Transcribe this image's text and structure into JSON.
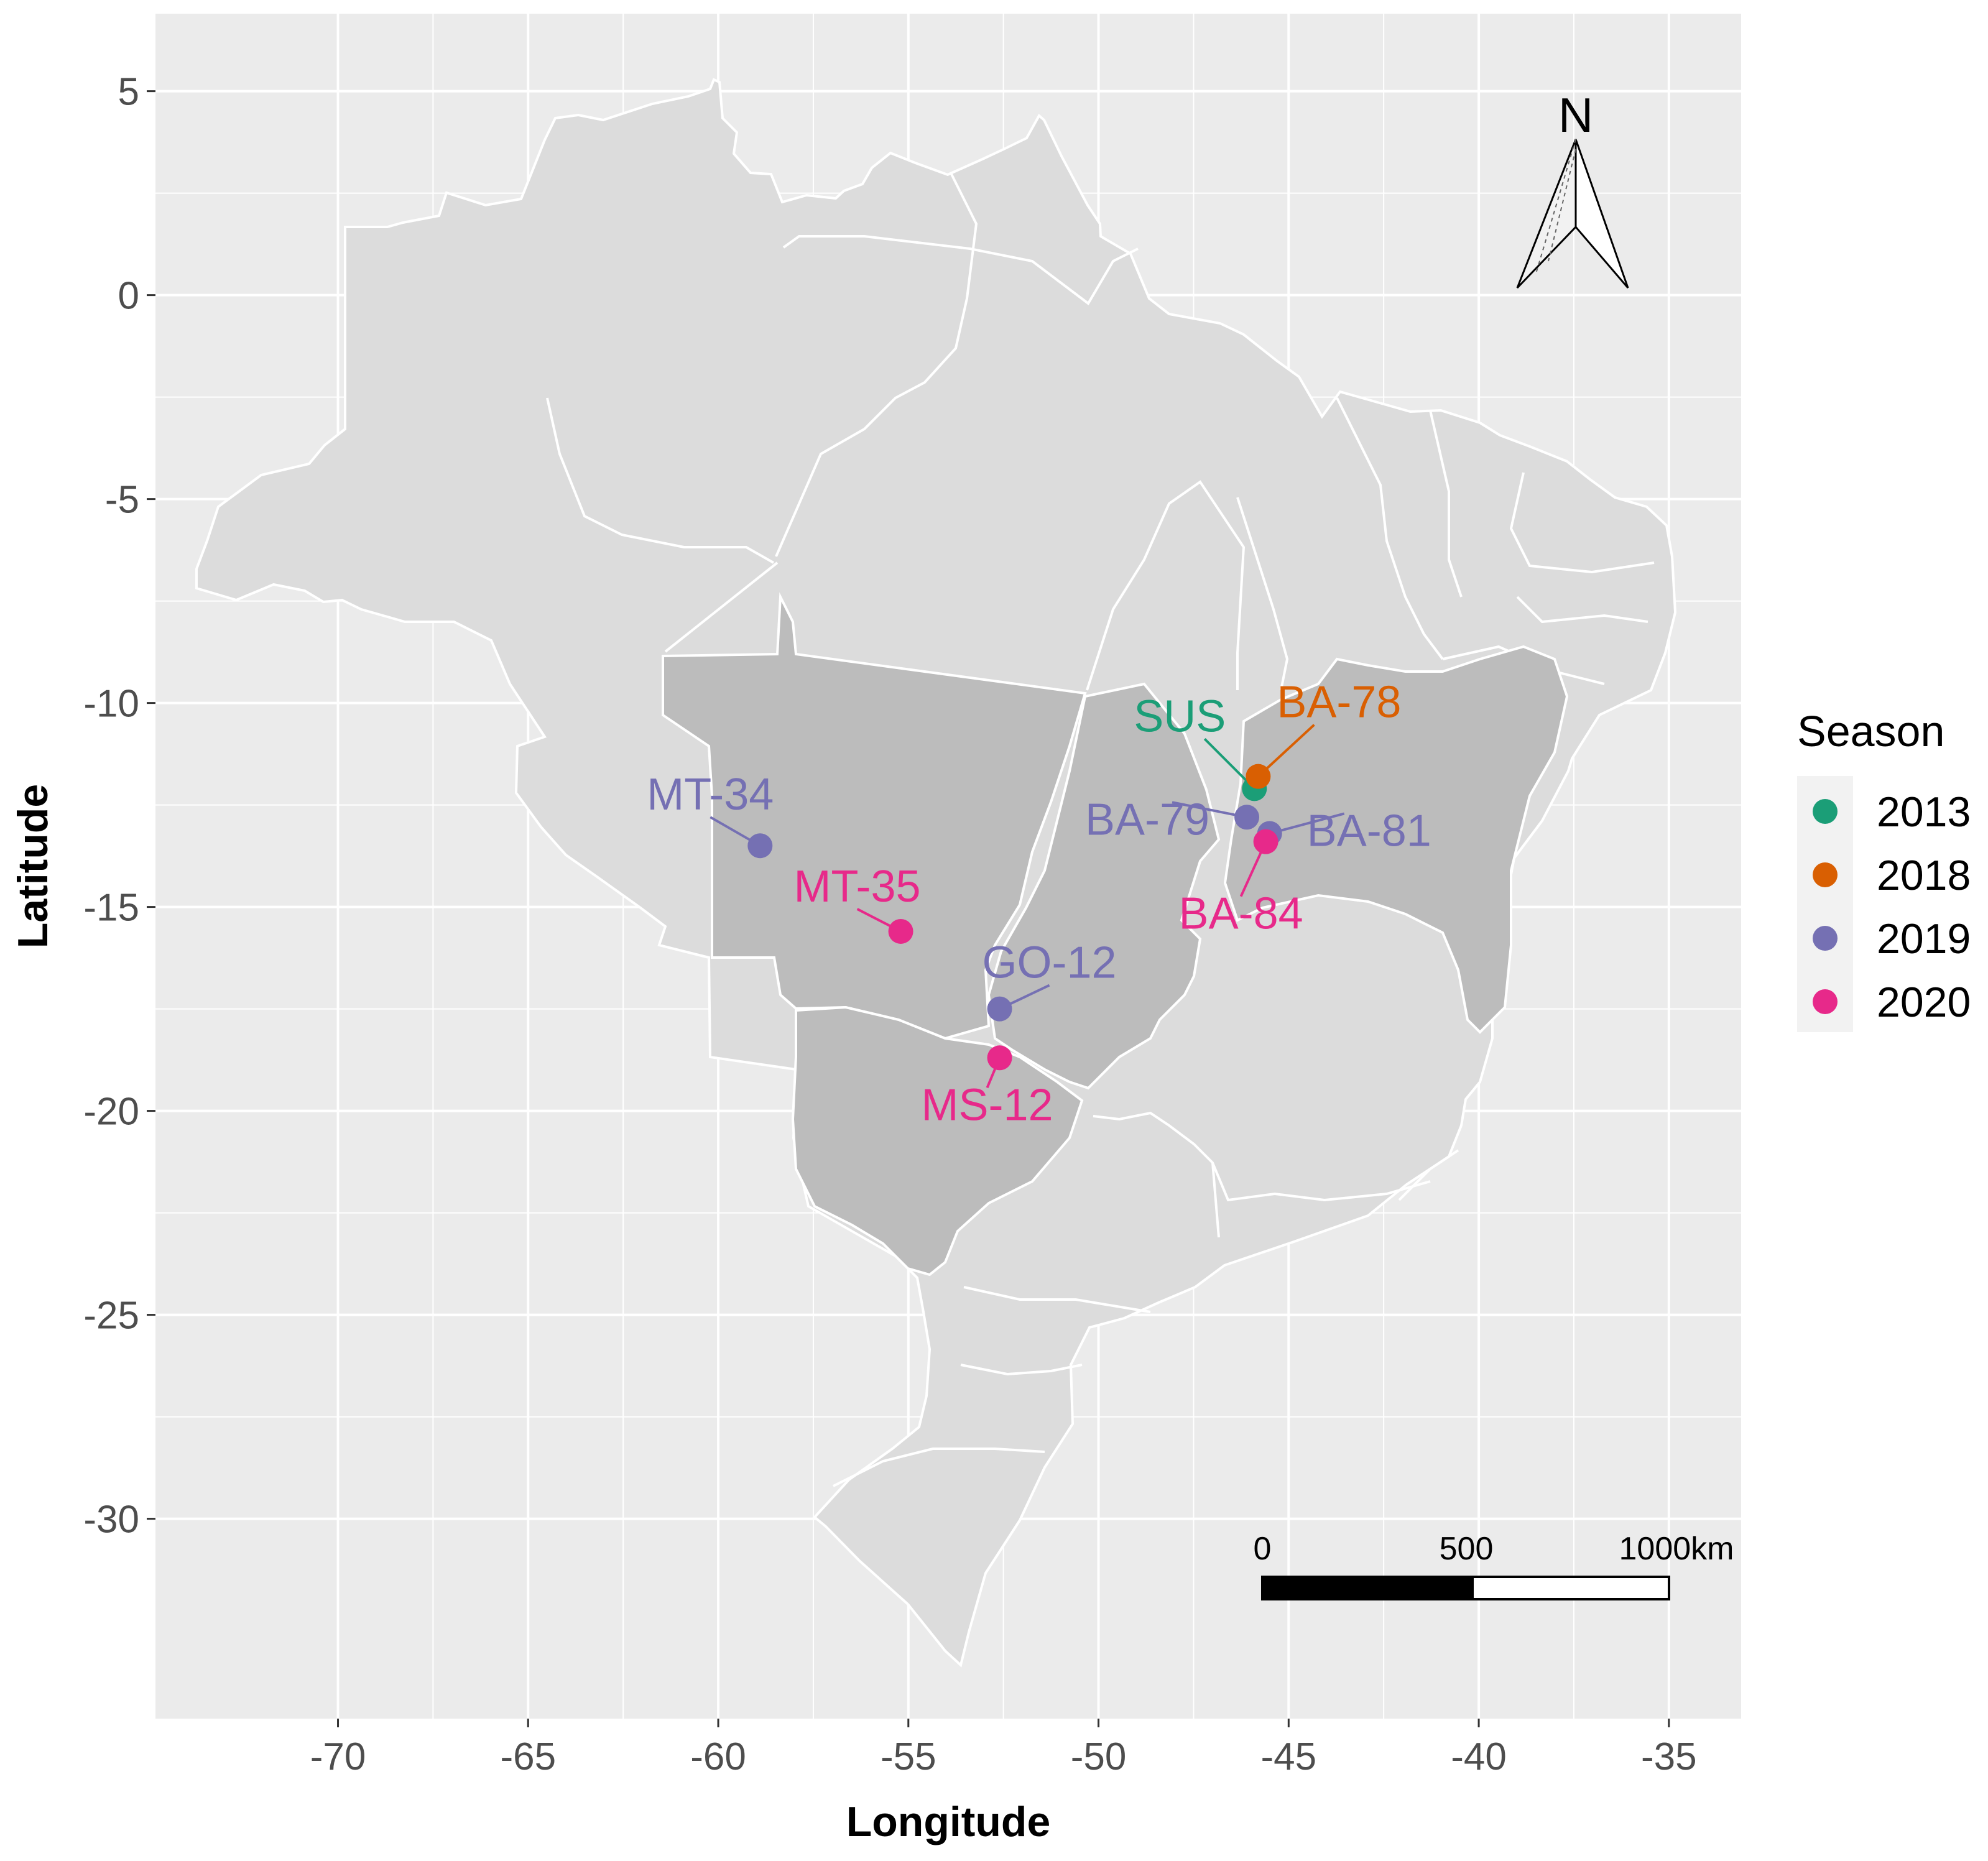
{
  "chart_data": {
    "type": "map",
    "title": "",
    "xlabel": "Longitude",
    "ylabel": "Latitude",
    "xlim": [
      -74.8,
      -33.1
    ],
    "ylim": [
      -34.9,
      6.9
    ],
    "x_ticks": [
      {
        "value": -70,
        "label": "-70"
      },
      {
        "value": -65,
        "label": "-65"
      },
      {
        "value": -60,
        "label": "-60"
      },
      {
        "value": -55,
        "label": "-55"
      },
      {
        "value": -50,
        "label": "-50"
      },
      {
        "value": -45,
        "label": "-45"
      },
      {
        "value": -40,
        "label": "-40"
      },
      {
        "value": -35,
        "label": "-35"
      }
    ],
    "y_ticks": [
      {
        "value": 5,
        "label": "5"
      },
      {
        "value": 0,
        "label": "0"
      },
      {
        "value": -5,
        "label": "-5"
      },
      {
        "value": -10,
        "label": "-10"
      },
      {
        "value": -15,
        "label": "-15"
      },
      {
        "value": -20,
        "label": "-20"
      },
      {
        "value": -25,
        "label": "-25"
      },
      {
        "value": -30,
        "label": "-30"
      }
    ],
    "highlighted_states": [
      "Mato Grosso",
      "Mato Grosso do Sul",
      "Goiás",
      "Bahia"
    ],
    "points": [
      {
        "label": "SUS",
        "season": "2013",
        "lon": -45.9,
        "lat": -12.1
      },
      {
        "label": "BA-78",
        "season": "2018",
        "lon": -45.8,
        "lat": -11.8
      },
      {
        "label": "MT-34",
        "season": "2019",
        "lon": -58.9,
        "lat": -13.5
      },
      {
        "label": "BA-79",
        "season": "2019",
        "lon": -46.1,
        "lat": -12.8
      },
      {
        "label": "BA-81",
        "season": "2019",
        "lon": -45.5,
        "lat": -13.2
      },
      {
        "label": "GO-12",
        "season": "2019",
        "lon": -52.6,
        "lat": -17.5
      },
      {
        "label": "MT-35",
        "season": "2020",
        "lon": -55.2,
        "lat": -15.6
      },
      {
        "label": "BA-84",
        "season": "2020",
        "lon": -45.6,
        "lat": -13.4
      },
      {
        "label": "MS-12",
        "season": "2020",
        "lon": -52.6,
        "lat": -18.7
      }
    ],
    "legend": {
      "title": "Season",
      "position": "right",
      "entries": [
        {
          "label": "2013",
          "color": "#1b9e77"
        },
        {
          "label": "2018",
          "color": "#d95f02"
        },
        {
          "label": "2019",
          "color": "#7570b3"
        },
        {
          "label": "2020",
          "color": "#e7298a"
        }
      ]
    },
    "north_arrow": "N",
    "scale_bar": {
      "labels": [
        "0",
        "500",
        "1000km"
      ]
    }
  }
}
